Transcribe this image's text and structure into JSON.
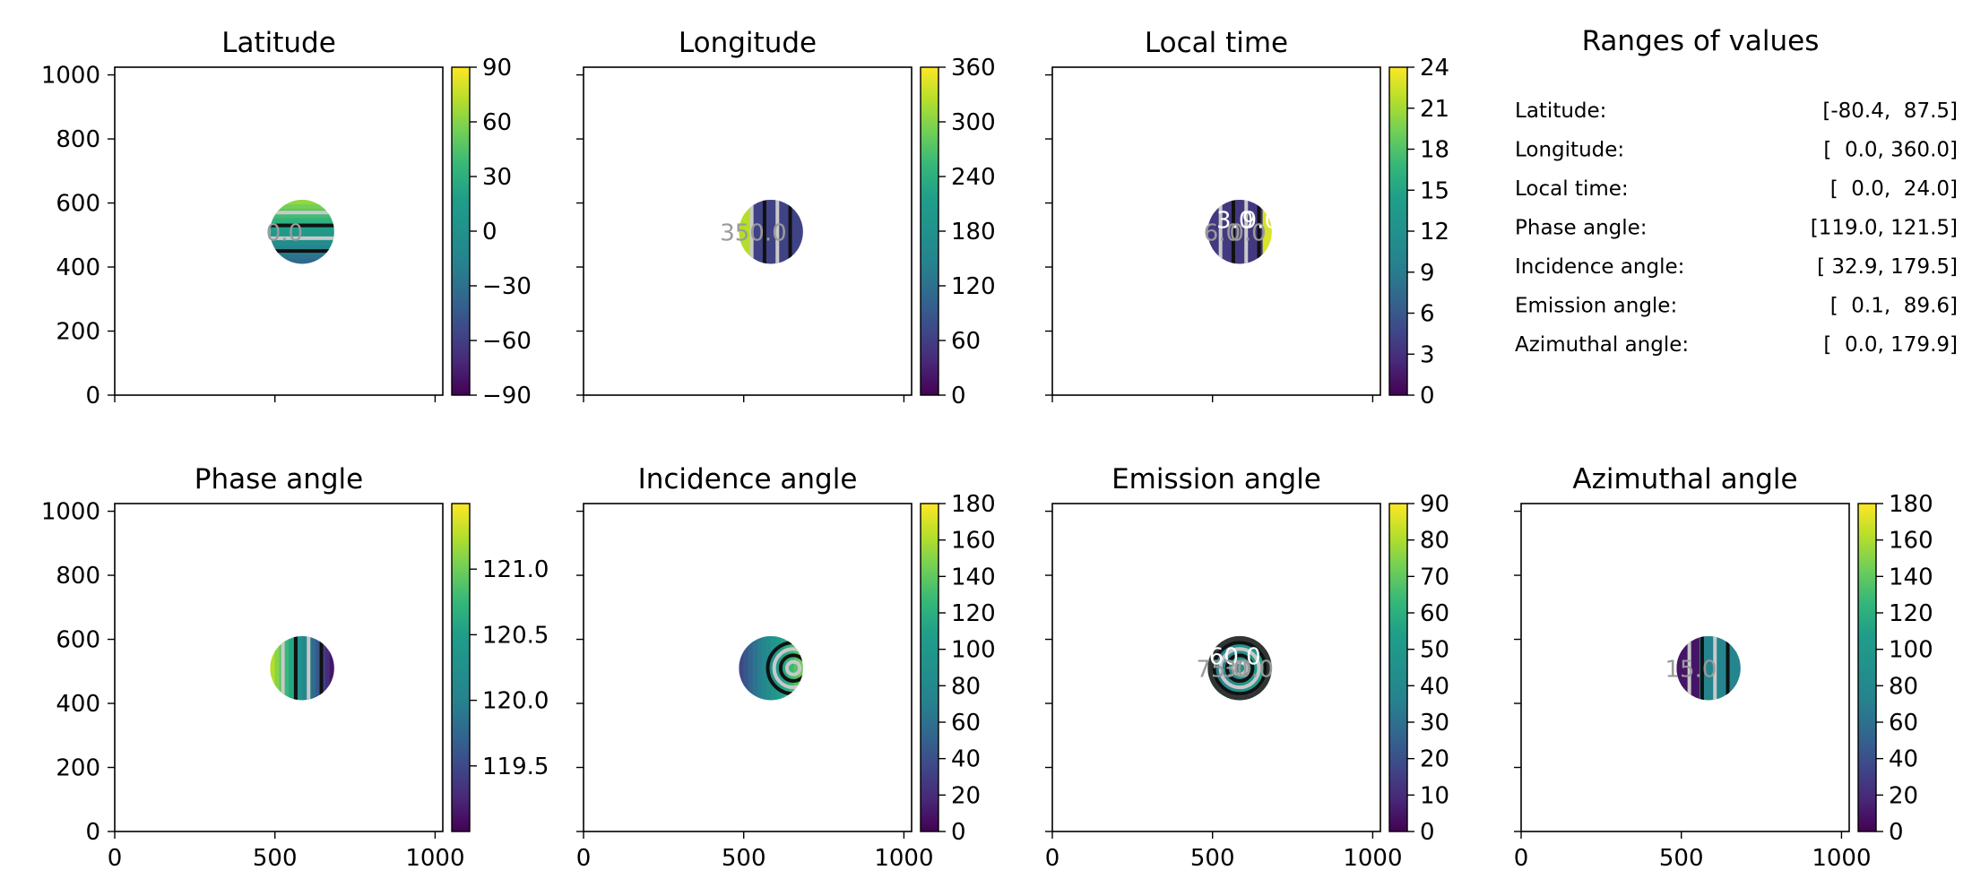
{
  "figure": {
    "background": "#ffffff",
    "colormap": "viridis",
    "contour_colors": {
      "light": "#c9c9c9",
      "dark": "#111111"
    },
    "panels": [
      {
        "key": "latitude",
        "title": "Latitude",
        "x_ticks": [
          "0",
          "500",
          "1000"
        ],
        "y_ticks": [
          "0",
          "200",
          "400",
          "600",
          "800",
          "1000"
        ],
        "colorbar_range": [
          -90,
          90
        ],
        "colorbar_ticks": [
          {
            "value": 90,
            "label": "90"
          },
          {
            "value": 60,
            "label": "60"
          },
          {
            "value": 30,
            "label": "30"
          },
          {
            "value": 0,
            "label": "0"
          },
          {
            "value": -30,
            "label": "−30"
          },
          {
            "value": -60,
            "label": "−60"
          },
          {
            "value": -90,
            "label": "−90"
          }
        ],
        "contour_labels": [
          "0.0"
        ]
      },
      {
        "key": "longitude",
        "title": "Longitude",
        "x_ticks": [
          "0",
          "500",
          "1000"
        ],
        "y_ticks": [
          "0",
          "200",
          "400",
          "600",
          "800",
          "1000"
        ],
        "colorbar_range": [
          0,
          360
        ],
        "colorbar_ticks": [
          {
            "value": 360,
            "label": "360"
          },
          {
            "value": 300,
            "label": "300"
          },
          {
            "value": 240,
            "label": "240"
          },
          {
            "value": 180,
            "label": "180"
          },
          {
            "value": 120,
            "label": "120"
          },
          {
            "value": 60,
            "label": "60"
          },
          {
            "value": 0,
            "label": "0"
          }
        ],
        "contour_labels": [
          "350.0"
        ]
      },
      {
        "key": "local_time",
        "title": "Local time",
        "x_ticks": [
          "0",
          "500",
          "1000"
        ],
        "y_ticks": [
          "0",
          "200",
          "400",
          "600",
          "800",
          "1000"
        ],
        "colorbar_range": [
          0,
          24
        ],
        "colorbar_ticks": [
          {
            "value": 24,
            "label": "24"
          },
          {
            "value": 21,
            "label": "21"
          },
          {
            "value": 18,
            "label": "18"
          },
          {
            "value": 15,
            "label": "15"
          },
          {
            "value": 12,
            "label": "12"
          },
          {
            "value": 9,
            "label": "9"
          },
          {
            "value": 6,
            "label": "6"
          },
          {
            "value": 3,
            "label": "3"
          },
          {
            "value": 0,
            "label": "0"
          }
        ],
        "contour_labels": [
          "6.0",
          "3.0",
          "0.0",
          "9.0"
        ]
      },
      {
        "key": "phase_angle",
        "title": "Phase angle",
        "x_ticks": [
          "0",
          "500",
          "1000"
        ],
        "y_ticks": [
          "0",
          "200",
          "400",
          "600",
          "800",
          "1000"
        ],
        "colorbar_range": [
          119.0,
          121.5
        ],
        "colorbar_ticks": [
          {
            "value": 121.0,
            "label": "121.0"
          },
          {
            "value": 120.5,
            "label": "120.5"
          },
          {
            "value": 120.0,
            "label": "120.0"
          },
          {
            "value": 119.5,
            "label": "119.5"
          }
        ],
        "contour_labels": []
      },
      {
        "key": "incidence_angle",
        "title": "Incidence angle",
        "x_ticks": [
          "0",
          "500",
          "1000"
        ],
        "y_ticks": [
          "0",
          "200",
          "400",
          "600",
          "800",
          "1000"
        ],
        "colorbar_range": [
          0,
          180
        ],
        "colorbar_ticks": [
          {
            "value": 180,
            "label": "180"
          },
          {
            "value": 160,
            "label": "160"
          },
          {
            "value": 140,
            "label": "140"
          },
          {
            "value": 120,
            "label": "120"
          },
          {
            "value": 100,
            "label": "100"
          },
          {
            "value": 80,
            "label": "80"
          },
          {
            "value": 60,
            "label": "60"
          },
          {
            "value": 40,
            "label": "40"
          },
          {
            "value": 20,
            "label": "20"
          },
          {
            "value": 0,
            "label": "0"
          }
        ],
        "contour_labels": []
      },
      {
        "key": "emission_angle",
        "title": "Emission angle",
        "x_ticks": [
          "0",
          "500",
          "1000"
        ],
        "y_ticks": [
          "0",
          "200",
          "400",
          "600",
          "800",
          "1000"
        ],
        "colorbar_range": [
          0,
          90
        ],
        "colorbar_ticks": [
          {
            "value": 90,
            "label": "90"
          },
          {
            "value": 80,
            "label": "80"
          },
          {
            "value": 70,
            "label": "70"
          },
          {
            "value": 60,
            "label": "60"
          },
          {
            "value": 50,
            "label": "50"
          },
          {
            "value": 40,
            "label": "40"
          },
          {
            "value": 30,
            "label": "30"
          },
          {
            "value": 20,
            "label": "20"
          },
          {
            "value": 10,
            "label": "10"
          },
          {
            "value": 0,
            "label": "0"
          }
        ],
        "contour_labels": [
          "75.0",
          "60.0",
          "30.0"
        ]
      },
      {
        "key": "azimuthal_angle",
        "title": "Azimuthal angle",
        "x_ticks": [
          "0",
          "500",
          "1000"
        ],
        "y_ticks": [
          "0",
          "200",
          "400",
          "600",
          "800",
          "1000"
        ],
        "colorbar_range": [
          0,
          180
        ],
        "colorbar_ticks": [
          {
            "value": 180,
            "label": "180"
          },
          {
            "value": 160,
            "label": "160"
          },
          {
            "value": 140,
            "label": "140"
          },
          {
            "value": 120,
            "label": "120"
          },
          {
            "value": 100,
            "label": "100"
          },
          {
            "value": 80,
            "label": "80"
          },
          {
            "value": 60,
            "label": "60"
          },
          {
            "value": 40,
            "label": "40"
          },
          {
            "value": 20,
            "label": "20"
          },
          {
            "value": 0,
            "label": "0"
          }
        ],
        "contour_labels": [
          "15.0"
        ]
      }
    ],
    "ranges_panel": {
      "title": "Ranges of values",
      "rows": [
        {
          "name": "Latitude:",
          "range": "[-80.4,  87.5]"
        },
        {
          "name": "Longitude:",
          "range": "[  0.0, 360.0]"
        },
        {
          "name": "Local time:",
          "range": "[  0.0,  24.0]"
        },
        {
          "name": "Phase angle:",
          "range": "[119.0, 121.5]"
        },
        {
          "name": "Incidence angle:",
          "range": "[ 32.9, 179.5]"
        },
        {
          "name": "Emission angle:",
          "range": "[  0.1,  89.6]"
        },
        {
          "name": "Azimuthal angle:",
          "range": "[  0.0, 179.9]"
        }
      ]
    }
  },
  "chart_data": [
    {
      "type": "heatmap",
      "title": "Latitude",
      "xlim": [
        0,
        1024
      ],
      "ylim": [
        0,
        1024
      ],
      "colorbar": {
        "min": -90,
        "max": 90
      },
      "disc": {
        "center": [
          585,
          510
        ],
        "radius": 100
      },
      "value_range": [
        -80.4,
        87.5
      ],
      "contour_labels": [
        "0.0"
      ]
    },
    {
      "type": "heatmap",
      "title": "Longitude",
      "xlim": [
        0,
        1024
      ],
      "ylim": [
        0,
        1024
      ],
      "colorbar": {
        "min": 0,
        "max": 360
      },
      "disc": {
        "center": [
          585,
          510
        ],
        "radius": 100
      },
      "value_range": [
        0.0,
        360.0
      ],
      "contour_labels": [
        "350.0"
      ]
    },
    {
      "type": "heatmap",
      "title": "Local time",
      "xlim": [
        0,
        1024
      ],
      "ylim": [
        0,
        1024
      ],
      "colorbar": {
        "min": 0,
        "max": 24
      },
      "disc": {
        "center": [
          585,
          510
        ],
        "radius": 100
      },
      "value_range": [
        0.0,
        24.0
      ],
      "contour_labels": [
        "6.0",
        "3.0",
        "0.0",
        "9.0"
      ]
    },
    {
      "type": "heatmap",
      "title": "Phase angle",
      "xlim": [
        0,
        1024
      ],
      "ylim": [
        0,
        1024
      ],
      "colorbar": {
        "min": 119.0,
        "max": 121.5
      },
      "disc": {
        "center": [
          585,
          510
        ],
        "radius": 100
      },
      "value_range": [
        119.0,
        121.5
      ]
    },
    {
      "type": "heatmap",
      "title": "Incidence angle",
      "xlim": [
        0,
        1024
      ],
      "ylim": [
        0,
        1024
      ],
      "colorbar": {
        "min": 0,
        "max": 180
      },
      "disc": {
        "center": [
          585,
          510
        ],
        "radius": 100
      },
      "value_range": [
        32.9,
        179.5
      ]
    },
    {
      "type": "heatmap",
      "title": "Emission angle",
      "xlim": [
        0,
        1024
      ],
      "ylim": [
        0,
        1024
      ],
      "colorbar": {
        "min": 0,
        "max": 90
      },
      "disc": {
        "center": [
          585,
          510
        ],
        "radius": 100
      },
      "value_range": [
        0.1,
        89.6
      ],
      "contour_labels": [
        "75.0",
        "60.0",
        "30.0"
      ]
    },
    {
      "type": "heatmap",
      "title": "Azimuthal angle",
      "xlim": [
        0,
        1024
      ],
      "ylim": [
        0,
        1024
      ],
      "colorbar": {
        "min": 0,
        "max": 180
      },
      "disc": {
        "center": [
          585,
          510
        ],
        "radius": 100
      },
      "value_range": [
        0.0,
        179.9
      ],
      "contour_labels": [
        "15.0"
      ]
    }
  ]
}
